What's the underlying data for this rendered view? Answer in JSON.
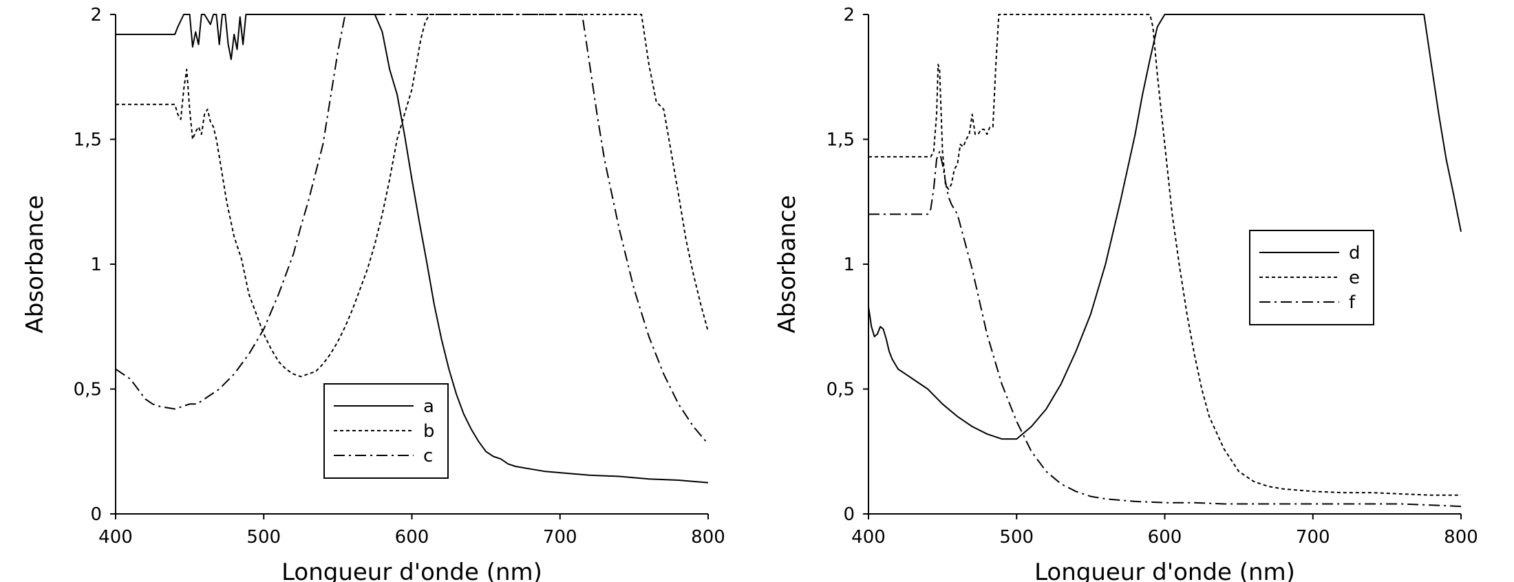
{
  "chart_data": [
    {
      "type": "line",
      "title": "",
      "xlabel": "Longueur d'onde (nm)",
      "ylabel": "Absorbance",
      "xlim": [
        400,
        800
      ],
      "ylim": [
        0,
        2
      ],
      "xticks": [
        400,
        500,
        600,
        700,
        800
      ],
      "xtick_labels": [
        "400",
        "500",
        "600",
        "700",
        "800"
      ],
      "yticks": [
        0,
        0.5,
        1,
        1.5,
        2
      ],
      "ytick_labels": [
        "0",
        "0,5",
        "1",
        "1,5",
        "2"
      ],
      "grid": false,
      "legend_position": "bottom-center",
      "series": [
        {
          "name": "a",
          "style": "solid",
          "x": [
            400,
            440,
            442,
            446,
            448,
            450,
            452,
            454,
            456,
            458,
            460,
            462,
            464,
            466,
            468,
            470,
            472,
            474,
            476,
            478,
            480,
            482,
            484,
            486,
            488,
            490,
            575,
            580,
            585,
            590,
            595,
            600,
            605,
            610,
            615,
            620,
            625,
            630,
            635,
            640,
            645,
            650,
            655,
            660,
            665,
            670,
            680,
            690,
            700,
            720,
            740,
            760,
            780,
            800
          ],
          "y": [
            1.92,
            1.92,
            1.95,
            2.0,
            2.0,
            2.0,
            1.87,
            1.93,
            1.88,
            2.0,
            2.0,
            1.98,
            1.96,
            2.0,
            2.0,
            1.88,
            2.0,
            2.0,
            1.88,
            1.82,
            1.92,
            1.86,
            1.99,
            1.88,
            2.0,
            2.0,
            2.0,
            1.93,
            1.78,
            1.68,
            1.52,
            1.34,
            1.17,
            1.01,
            0.84,
            0.7,
            0.58,
            0.48,
            0.4,
            0.34,
            0.29,
            0.25,
            0.23,
            0.22,
            0.2,
            0.19,
            0.18,
            0.17,
            0.165,
            0.155,
            0.15,
            0.14,
            0.135,
            0.125
          ]
        },
        {
          "name": "b",
          "style": "dotted",
          "x": [
            400,
            440,
            442,
            444,
            446,
            448,
            450,
            452,
            454,
            456,
            458,
            460,
            462,
            464,
            466,
            468,
            470,
            475,
            480,
            485,
            490,
            495,
            500,
            505,
            510,
            515,
            520,
            525,
            530,
            535,
            540,
            545,
            550,
            555,
            560,
            565,
            570,
            575,
            580,
            585,
            590,
            595,
            600,
            603,
            606,
            609,
            612,
            755,
            760,
            765,
            770,
            775,
            780,
            785,
            790,
            795,
            800
          ],
          "y": [
            1.64,
            1.64,
            1.6,
            1.58,
            1.7,
            1.78,
            1.62,
            1.5,
            1.53,
            1.55,
            1.52,
            1.6,
            1.62,
            1.57,
            1.55,
            1.5,
            1.43,
            1.25,
            1.11,
            1.02,
            0.88,
            0.8,
            0.72,
            0.66,
            0.61,
            0.58,
            0.56,
            0.55,
            0.56,
            0.57,
            0.6,
            0.64,
            0.69,
            0.75,
            0.82,
            0.9,
            0.98,
            1.08,
            1.2,
            1.34,
            1.5,
            1.6,
            1.7,
            1.8,
            1.9,
            1.97,
            2.0,
            2.0,
            1.8,
            1.65,
            1.62,
            1.45,
            1.28,
            1.1,
            0.96,
            0.84,
            0.73
          ]
        },
        {
          "name": "c",
          "style": "dashdot",
          "x": [
            400,
            410,
            415,
            420,
            425,
            430,
            440,
            450,
            455,
            460,
            470,
            480,
            490,
            500,
            510,
            520,
            525,
            530,
            540,
            550,
            555,
            715,
            720,
            725,
            730,
            740,
            750,
            760,
            770,
            780,
            790,
            800
          ],
          "y": [
            0.58,
            0.54,
            0.5,
            0.46,
            0.44,
            0.43,
            0.42,
            0.44,
            0.44,
            0.46,
            0.5,
            0.56,
            0.64,
            0.74,
            0.88,
            1.04,
            1.15,
            1.25,
            1.48,
            1.85,
            2.0,
            2.0,
            1.8,
            1.6,
            1.42,
            1.14,
            0.9,
            0.71,
            0.56,
            0.44,
            0.35,
            0.28
          ]
        }
      ],
      "legend": [
        "a",
        "b",
        "c"
      ]
    },
    {
      "type": "line",
      "title": "",
      "xlabel": "Longueur d'onde (nm)",
      "ylabel": "Absorbance",
      "xlim": [
        400,
        800
      ],
      "ylim": [
        0,
        2
      ],
      "xticks": [
        400,
        500,
        600,
        700,
        800
      ],
      "xtick_labels": [
        "400",
        "500",
        "600",
        "700",
        "800"
      ],
      "yticks": [
        0,
        0.5,
        1,
        1.5,
        2
      ],
      "ytick_labels": [
        "0",
        "0,5",
        "1",
        "1,5",
        "2"
      ],
      "grid": false,
      "legend_position": "right-center",
      "series": [
        {
          "name": "d",
          "style": "solid",
          "x": [
            400,
            402,
            404,
            406,
            408,
            410,
            412,
            414,
            416,
            418,
            420,
            425,
            430,
            440,
            450,
            460,
            470,
            480,
            490,
            500,
            510,
            520,
            530,
            540,
            550,
            560,
            570,
            580,
            585,
            590,
            595,
            600,
            775,
            780,
            785,
            790,
            795,
            800
          ],
          "y": [
            0.83,
            0.75,
            0.71,
            0.72,
            0.75,
            0.74,
            0.7,
            0.65,
            0.62,
            0.6,
            0.58,
            0.56,
            0.54,
            0.5,
            0.44,
            0.39,
            0.35,
            0.32,
            0.3,
            0.3,
            0.35,
            0.42,
            0.52,
            0.65,
            0.8,
            1.0,
            1.25,
            1.52,
            1.68,
            1.82,
            1.95,
            2.0,
            2.0,
            1.8,
            1.6,
            1.42,
            1.28,
            1.13
          ]
        },
        {
          "name": "e",
          "style": "dotted",
          "x": [
            400,
            442,
            444,
            446,
            447,
            448,
            450,
            452,
            454,
            456,
            458,
            460,
            462,
            464,
            466,
            468,
            470,
            472,
            474,
            476,
            478,
            480,
            482,
            484,
            486,
            488,
            590,
            592,
            595,
            600,
            605,
            610,
            615,
            620,
            625,
            630,
            640,
            650,
            660,
            670,
            680,
            700,
            720,
            740,
            760,
            780,
            800
          ],
          "y": [
            1.43,
            1.43,
            1.45,
            1.6,
            1.8,
            1.78,
            1.45,
            1.32,
            1.3,
            1.32,
            1.38,
            1.4,
            1.48,
            1.47,
            1.5,
            1.52,
            1.6,
            1.52,
            1.52,
            1.54,
            1.54,
            1.52,
            1.55,
            1.55,
            1.8,
            2.0,
            2.0,
            1.95,
            1.76,
            1.48,
            1.2,
            0.99,
            0.8,
            0.64,
            0.5,
            0.39,
            0.26,
            0.17,
            0.13,
            0.11,
            0.1,
            0.09,
            0.085,
            0.085,
            0.08,
            0.075,
            0.075
          ]
        },
        {
          "name": "f",
          "style": "dashdot",
          "x": [
            400,
            440,
            442,
            444,
            446,
            448,
            450,
            452,
            454,
            456,
            458,
            460,
            470,
            480,
            490,
            500,
            510,
            520,
            530,
            540,
            550,
            560,
            580,
            600,
            620,
            640,
            660,
            700,
            740,
            760,
            780,
            800
          ],
          "y": [
            1.2,
            1.2,
            1.22,
            1.3,
            1.42,
            1.45,
            1.4,
            1.33,
            1.27,
            1.24,
            1.22,
            1.2,
            0.98,
            0.72,
            0.52,
            0.37,
            0.25,
            0.17,
            0.12,
            0.09,
            0.07,
            0.06,
            0.05,
            0.045,
            0.045,
            0.04,
            0.04,
            0.04,
            0.04,
            0.04,
            0.035,
            0.03
          ]
        }
      ],
      "legend": [
        "d",
        "e",
        "f"
      ]
    }
  ]
}
